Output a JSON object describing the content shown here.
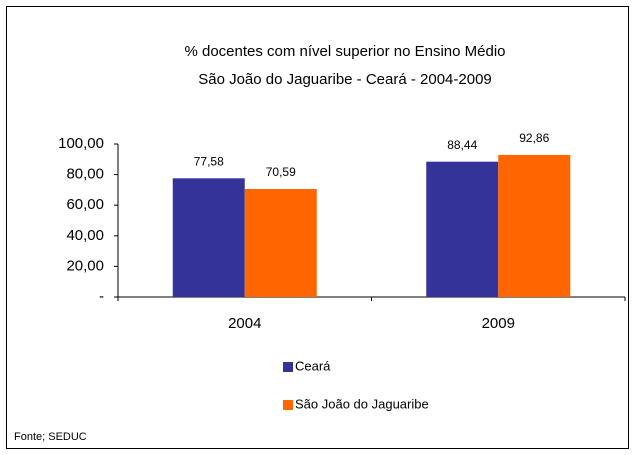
{
  "chart_data": {
    "type": "bar",
    "title": "% docentes com nível superior no Ensino Médio",
    "subtitle": "São João do Jaguaribe -  Ceará - 2004-2009",
    "categories": [
      "2004",
      "2009"
    ],
    "series": [
      {
        "name": "Ceará",
        "color": "#333399",
        "values": [
          77.58,
          88.44
        ],
        "value_labels": [
          "77,58",
          "88,44"
        ]
      },
      {
        "name": "São João do Jaguaribe",
        "color": "#ff6600",
        "values": [
          70.59,
          92.86
        ],
        "value_labels": [
          "70,59",
          "92,86"
        ]
      }
    ],
    "ylim": [
      0,
      100
    ],
    "yticks": [
      {
        "value": 0,
        "label": "-"
      },
      {
        "value": 20,
        "label": "20,00"
      },
      {
        "value": 40,
        "label": "40,00"
      },
      {
        "value": 60,
        "label": "60,00"
      },
      {
        "value": 80,
        "label": "80,00"
      },
      {
        "value": 100,
        "label": "100,00"
      }
    ],
    "grid": false,
    "source": "Fonte; SEDUC"
  }
}
